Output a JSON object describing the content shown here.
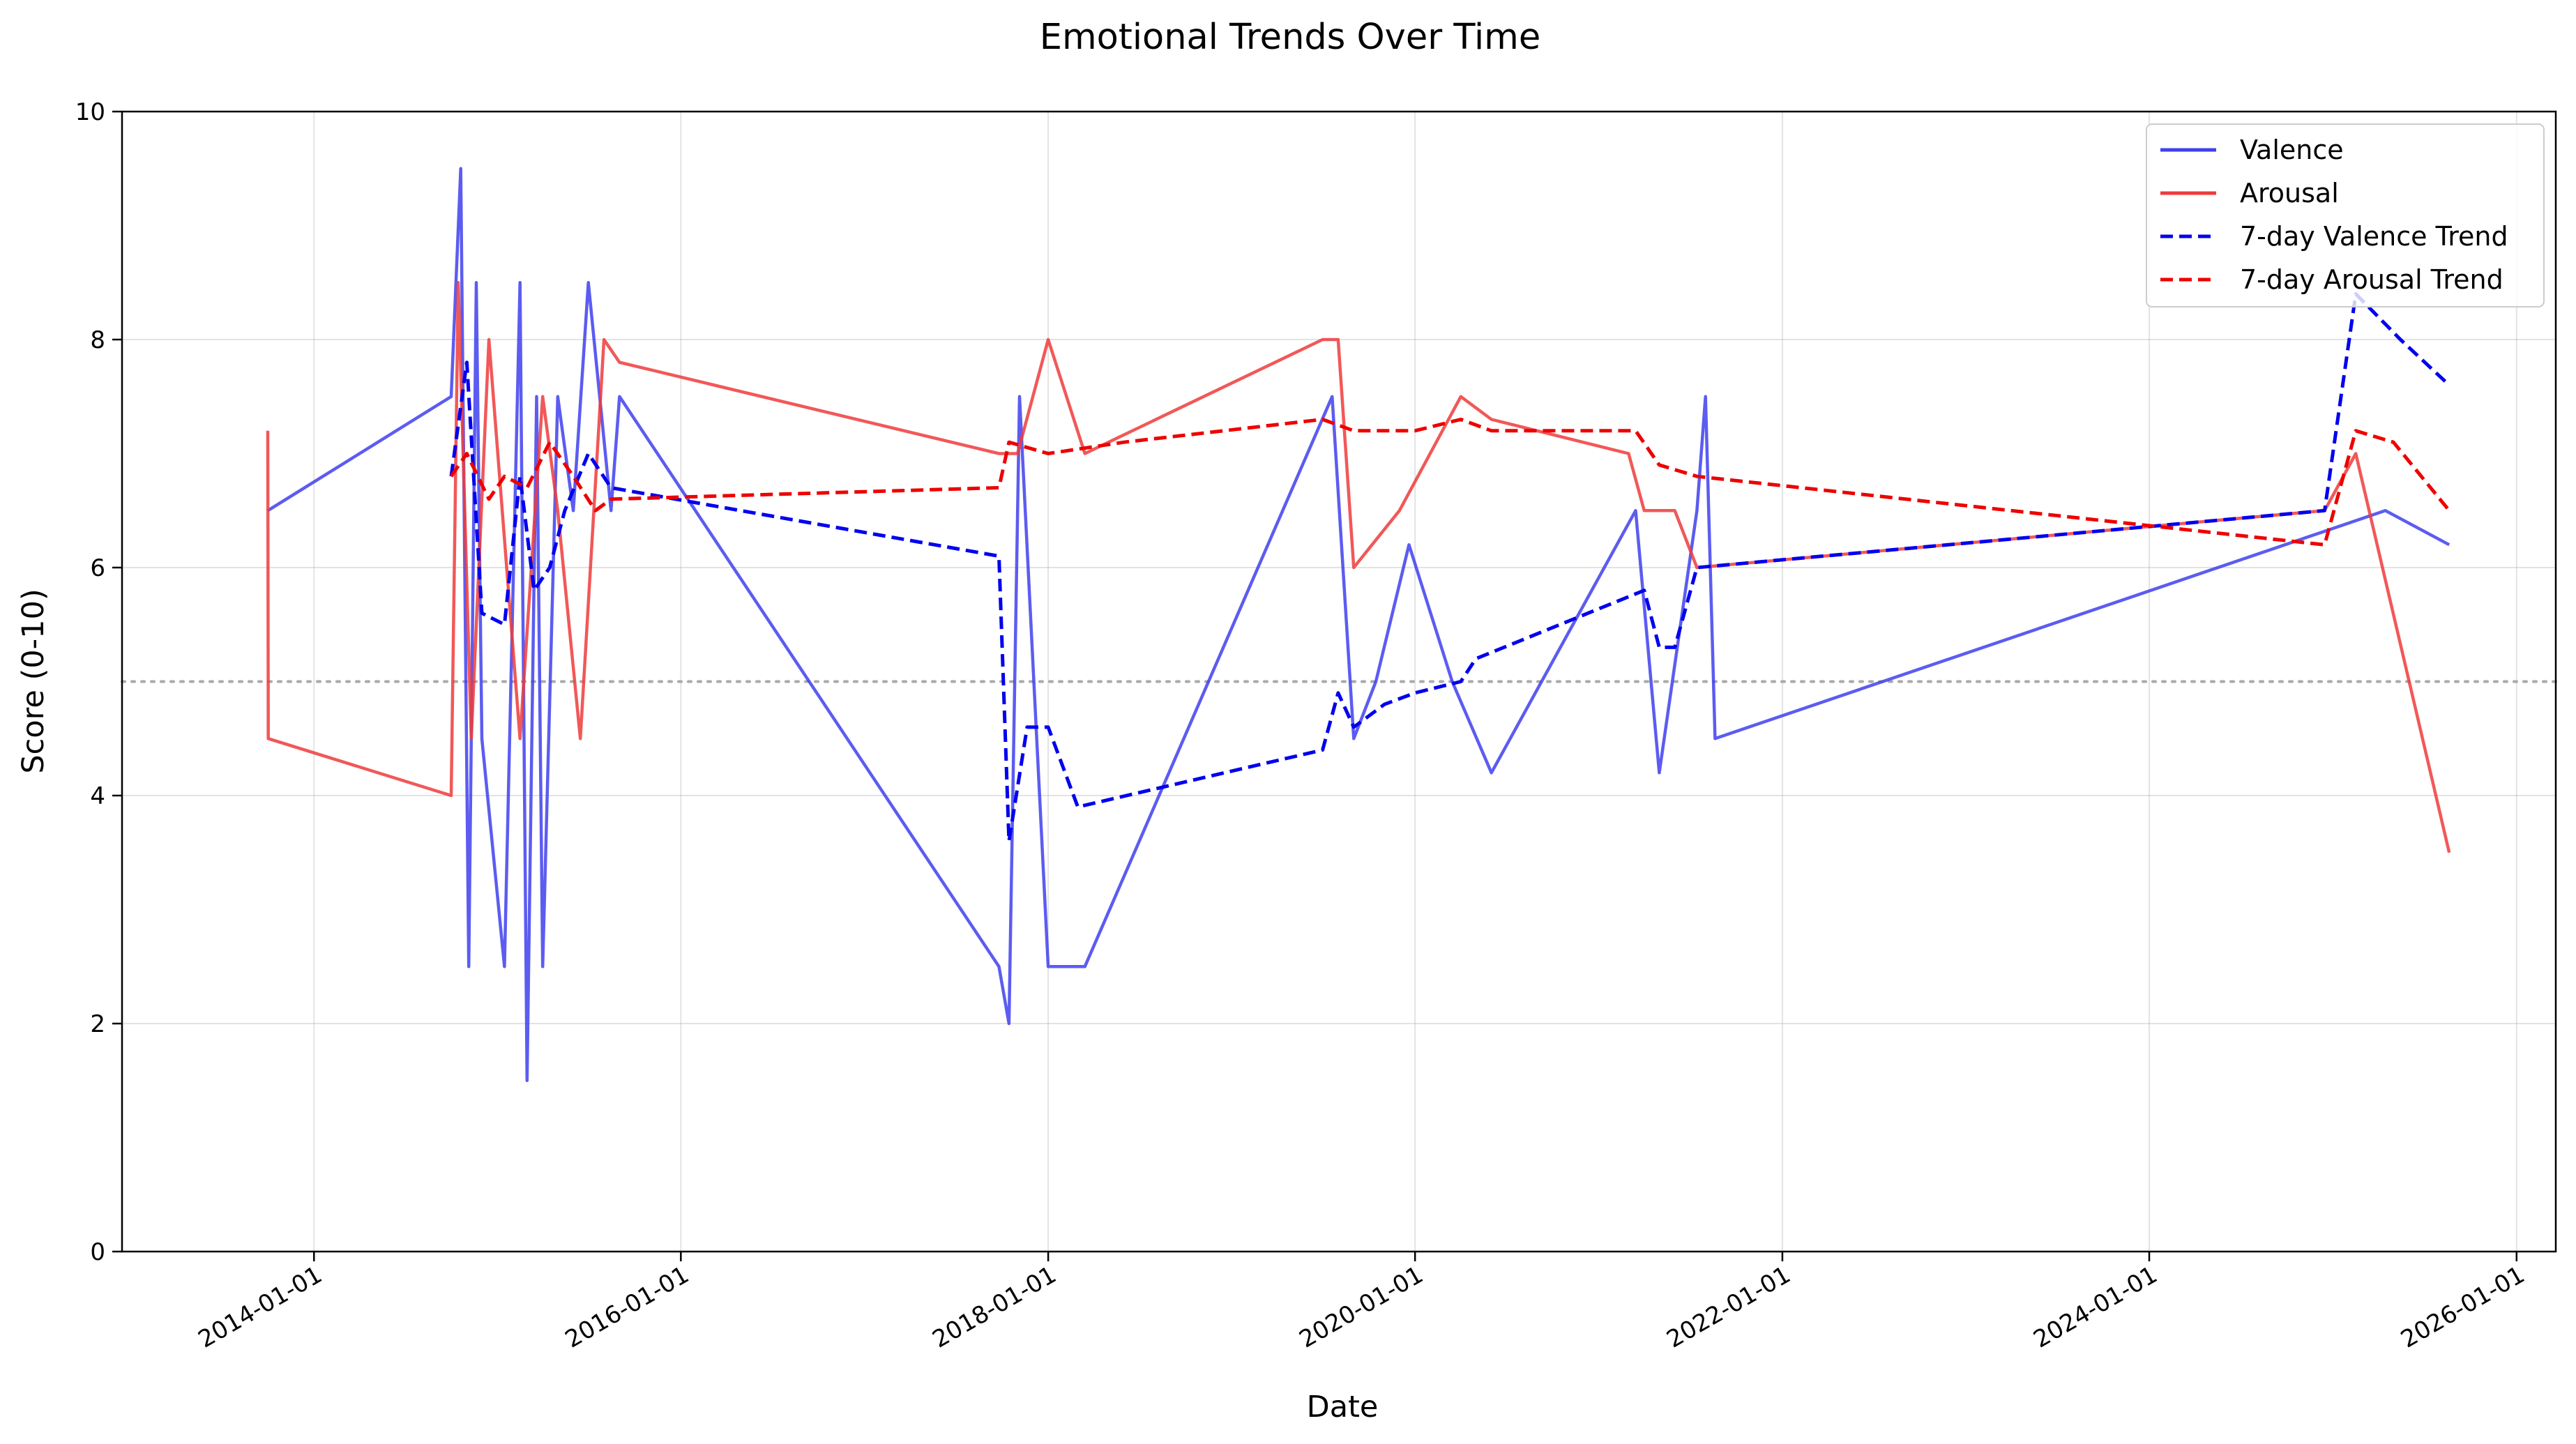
{
  "chart_data": {
    "type": "line",
    "title": "Emotional Trends Over Time",
    "xlabel": "Date",
    "ylabel": "Score (0-10)",
    "xlim": [
      "2012-12-15",
      "2026-03-20"
    ],
    "ylim": [
      0,
      10
    ],
    "x_ticks": [
      "2014-01-01",
      "2016-01-01",
      "2018-01-01",
      "2020-01-01",
      "2022-01-01",
      "2024-01-01",
      "2026-01-01"
    ],
    "y_ticks": [
      0,
      2,
      4,
      6,
      8,
      10
    ],
    "grid": true,
    "legend_position": "top-right",
    "reference_line": {
      "y": 5,
      "style": "dotted",
      "color": "#aaaaaa"
    },
    "series": [
      {
        "name": "Valence",
        "color": "#4040ee",
        "style": "solid",
        "x": [
          "2013-10-01",
          "2014-10-01",
          "2014-10-20",
          "2014-11-05",
          "2014-11-20",
          "2014-12-01",
          "2015-01-15",
          "2015-02-15",
          "2015-03-01",
          "2015-03-20",
          "2015-04-01",
          "2015-05-01",
          "2015-06-01",
          "2015-07-01",
          "2015-08-15",
          "2015-09-01",
          "2017-09-25",
          "2017-10-15",
          "2017-11-05",
          "2018-01-01",
          "2018-03-15",
          "2019-07-20",
          "2019-09-01",
          "2019-10-15",
          "2019-12-20",
          "2020-03-15",
          "2020-06-01",
          "2021-03-15",
          "2021-05-01",
          "2021-07-15",
          "2021-08-01",
          "2021-08-20",
          "2025-04-15",
          "2025-08-20"
        ],
        "values": [
          6.5,
          7.5,
          9.5,
          2.5,
          8.5,
          4.5,
          2.5,
          8.5,
          1.5,
          7.5,
          2.5,
          7.5,
          6.5,
          8.5,
          6.5,
          7.5,
          2.5,
          2.0,
          7.5,
          2.5,
          2.5,
          7.5,
          4.5,
          5.0,
          6.2,
          5.0,
          4.2,
          6.5,
          4.2,
          6.5,
          7.5,
          4.5,
          6.5,
          6.2
        ]
      },
      {
        "name": "Arousal",
        "color": "#ee3b3b",
        "style": "solid",
        "x": [
          "2013-10-01",
          "2013-10-02",
          "2014-10-01",
          "2014-10-15",
          "2014-11-10",
          "2014-12-15",
          "2015-02-15",
          "2015-04-01",
          "2015-05-01",
          "2015-06-15",
          "2015-08-01",
          "2015-09-01",
          "2017-09-25",
          "2017-11-01",
          "2018-01-01",
          "2018-03-15",
          "2019-07-01",
          "2019-08-01",
          "2019-09-01",
          "2019-12-01",
          "2020-04-01",
          "2020-06-01",
          "2021-03-01",
          "2021-04-01",
          "2021-06-01",
          "2021-07-15",
          "2024-12-15",
          "2025-02-15",
          "2025-08-20"
        ],
        "values": [
          7.2,
          4.5,
          4.0,
          8.5,
          4.5,
          8.0,
          4.5,
          7.5,
          6.5,
          4.5,
          8.0,
          7.8,
          7.0,
          7.0,
          8.0,
          7.0,
          8.0,
          8.0,
          6.0,
          6.5,
          7.5,
          7.3,
          7.0,
          6.5,
          6.5,
          6.0,
          6.5,
          7.0,
          3.5
        ]
      },
      {
        "name": "7-day Valence Trend",
        "color": "#0000ee",
        "style": "dashed",
        "x": [
          "2014-10-01",
          "2014-11-01",
          "2014-12-01",
          "2015-01-15",
          "2015-02-15",
          "2015-03-15",
          "2015-04-15",
          "2015-05-15",
          "2015-07-01",
          "2015-08-15",
          "2017-09-25",
          "2017-10-15",
          "2017-11-20",
          "2018-01-01",
          "2018-03-01",
          "2019-07-01",
          "2019-08-01",
          "2019-09-01",
          "2019-11-01",
          "2020-01-01",
          "2020-04-01",
          "2020-05-01",
          "2021-04-01",
          "2021-05-01",
          "2021-06-01",
          "2021-07-15",
          "2024-12-15",
          "2025-02-15",
          "2025-05-15",
          "2025-08-20"
        ],
        "values": [
          6.8,
          7.8,
          5.6,
          5.5,
          6.8,
          5.8,
          6.0,
          6.5,
          7.0,
          6.7,
          6.1,
          3.6,
          4.6,
          4.6,
          3.9,
          4.4,
          4.9,
          4.6,
          4.8,
          4.9,
          5.0,
          5.2,
          5.8,
          5.3,
          5.3,
          6.0,
          6.5,
          8.4,
          8.0,
          7.6
        ]
      },
      {
        "name": "7-day Arousal Trend",
        "color": "#ee0000",
        "style": "dashed",
        "x": [
          "2014-10-01",
          "2014-11-01",
          "2014-12-15",
          "2015-01-15",
          "2015-03-01",
          "2015-04-15",
          "2015-06-01",
          "2015-07-15",
          "2015-08-15",
          "2017-09-25",
          "2017-10-15",
          "2018-01-01",
          "2018-06-01",
          "2019-07-01",
          "2019-09-01",
          "2020-01-01",
          "2020-04-01",
          "2020-06-01",
          "2021-03-15",
          "2021-05-01",
          "2021-07-15",
          "2024-12-15",
          "2025-02-15",
          "2025-05-01",
          "2025-08-20"
        ],
        "values": [
          6.8,
          7.0,
          6.6,
          6.8,
          6.7,
          7.1,
          6.8,
          6.5,
          6.6,
          6.7,
          7.1,
          7.0,
          7.1,
          7.3,
          7.2,
          7.2,
          7.3,
          7.2,
          7.2,
          6.9,
          6.8,
          6.2,
          7.2,
          7.1,
          6.5
        ]
      }
    ]
  }
}
